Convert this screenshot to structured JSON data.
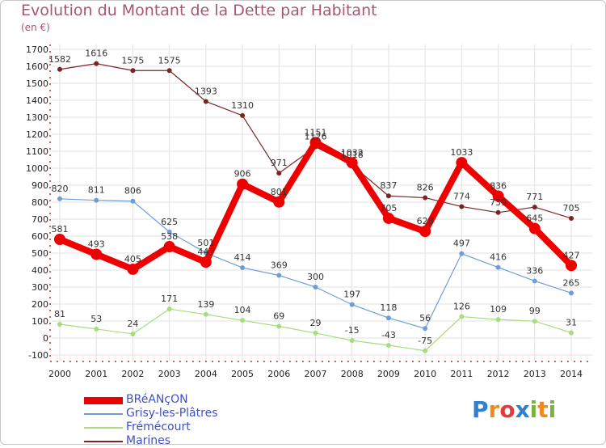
{
  "header": {
    "title": "Evolution du Montant de la Dette par Habitant",
    "subtitle": "(en €)"
  },
  "colors": {
    "text": "#a8576e",
    "grid": "#e2e2e2",
    "axis_text": "#222222",
    "label_text": "#333333",
    "legend_text": "#4050c0"
  },
  "logo": {
    "letters": [
      "P",
      "r",
      "o",
      "x",
      "i",
      "t",
      "i"
    ],
    "colors": [
      "#2f7fd3",
      "#f08a1c",
      "#e23b3b",
      "#2f7fd3",
      "#7ab33a",
      "#f08a1c",
      "#7ab33a"
    ]
  },
  "chart_data": {
    "type": "line",
    "title": "Evolution du Montant de la Dette par Habitant",
    "subtitle": "(en €)",
    "xlabel": "",
    "ylabel": "",
    "ylim": [
      -100,
      1700
    ],
    "yticks": [
      -100,
      0,
      100,
      200,
      300,
      400,
      500,
      600,
      700,
      800,
      900,
      1000,
      1100,
      1200,
      1300,
      1400,
      1500,
      1600,
      1700
    ],
    "x": [
      "2000",
      "2001",
      "2002",
      "2003",
      "2004",
      "2005",
      "2006",
      "2007",
      "2008",
      "2009",
      "2010",
      "2011",
      "2012",
      "2013",
      "2014"
    ],
    "grid": true,
    "legend_position": "bottom-left",
    "series": [
      {
        "name": "BRéANçON",
        "color": "#ee0000",
        "style": "thick",
        "values": [
          581,
          493,
          405,
          538,
          447,
          906,
          801,
          1151,
          1032,
          705,
          628,
          1033,
          836,
          645,
          427
        ],
        "labels": [
          "581",
          "493",
          "405",
          "538",
          "447",
          "906",
          "801",
          "1151",
          "1032",
          "705",
          "628",
          "1033",
          "836",
          "645",
          "427"
        ]
      },
      {
        "name": "Grisy-les-Plâtres",
        "color": "#6d9ed8",
        "style": "thin",
        "values": [
          820,
          811,
          806,
          625,
          501,
          414,
          369,
          300,
          197,
          118,
          56,
          497,
          416,
          336,
          265
        ],
        "labels": [
          "820",
          "811",
          "806",
          "625",
          "501",
          "414",
          "369",
          "300",
          "197",
          "118",
          "56",
          "497",
          "416",
          "336",
          "265"
        ]
      },
      {
        "name": "Frémécourt",
        "color": "#a7dd7c",
        "style": "thin",
        "values": [
          81,
          53,
          24,
          171,
          139,
          104,
          69,
          29,
          -15,
          -43,
          -75,
          126,
          109,
          99,
          31
        ],
        "labels": [
          "81",
          "53",
          "24",
          "171",
          "139",
          "104",
          "69",
          "29",
          "-15",
          "-43",
          "-75",
          "126",
          "109",
          "99",
          "31"
        ]
      },
      {
        "name": "Marines",
        "color": "#7a2525",
        "style": "thin",
        "values": [
          1582,
          1616,
          1575,
          1575,
          1393,
          1310,
          971,
          1126,
          1018,
          837,
          826,
          774,
          739,
          771,
          705
        ],
        "labels": [
          "1582",
          "1616",
          "1575",
          "1575",
          "1393",
          "1310",
          "971",
          "1126",
          "1018",
          "837",
          "826",
          "774",
          "739",
          "771",
          "705"
        ]
      }
    ]
  }
}
